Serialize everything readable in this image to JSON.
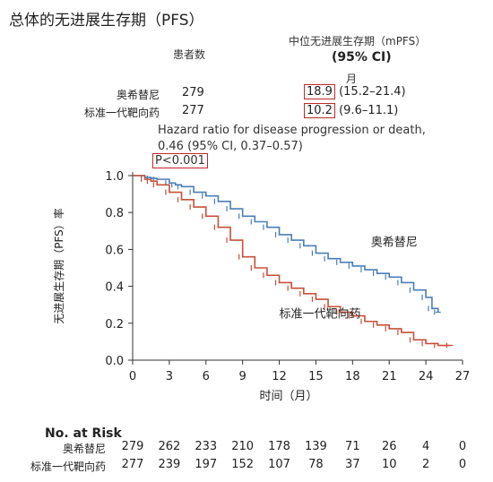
{
  "header": {
    "title": "总体的无进展生存期（PFS）",
    "col_patients": "患者数",
    "col_mpfs": "中位无进展生存期（mPFS）",
    "col_ci": "(95% CI)",
    "col_unit": "月"
  },
  "arms": [
    {
      "label": "奥希替尼",
      "n": "279",
      "median": "18.9",
      "ci": "(15.2–21.4)"
    },
    {
      "label": "标准一代靶向药",
      "n": "277",
      "median": "10.2",
      "ci": "(9.6–11.1)"
    }
  ],
  "hazard": {
    "line1": "Hazard ratio for disease progression or death,",
    "line2": "0.46 (95% CI, 0.37–0.57)",
    "pvalue": "P<0.001"
  },
  "colors": {
    "osimertinib": "#4a7ebb",
    "standard": "#c8503a",
    "highlight": "#c0272d"
  },
  "chart_data": {
    "type": "line",
    "xlabel": "时间（月）",
    "ylabel": "无进展生存期（PFS）率",
    "xlim": [
      0,
      27
    ],
    "ylim": [
      0,
      1.0
    ],
    "xticks": [
      "0",
      "3",
      "6",
      "9",
      "12",
      "15",
      "18",
      "21",
      "24",
      "27"
    ],
    "yticks": [
      "0.0",
      "0.2",
      "0.4",
      "0.6",
      "0.8",
      "1.0"
    ],
    "grid": false,
    "series": [
      {
        "name": "奥希替尼",
        "color": "#4a7ebb",
        "x": [
          0,
          1,
          1.5,
          2,
          3,
          3.5,
          4,
          5,
          6,
          7,
          8,
          9,
          10,
          11,
          12,
          13,
          14,
          15,
          16,
          17,
          18,
          19,
          20,
          21,
          22,
          23,
          24,
          24.5,
          25
        ],
        "y": [
          1.0,
          0.99,
          0.985,
          0.98,
          0.96,
          0.95,
          0.94,
          0.91,
          0.89,
          0.86,
          0.82,
          0.78,
          0.75,
          0.72,
          0.68,
          0.65,
          0.62,
          0.58,
          0.55,
          0.53,
          0.51,
          0.49,
          0.47,
          0.45,
          0.42,
          0.38,
          0.34,
          0.28,
          0.26
        ]
      },
      {
        "name": "标准一代靶向药",
        "color": "#c8503a",
        "x": [
          0,
          1,
          1.5,
          2,
          3,
          4,
          5,
          6,
          7,
          8,
          9,
          10,
          11,
          12,
          13,
          14,
          15,
          16,
          17,
          18,
          19,
          20,
          21,
          22,
          23,
          24,
          25,
          26
        ],
        "y": [
          1.0,
          0.98,
          0.97,
          0.95,
          0.91,
          0.87,
          0.83,
          0.78,
          0.72,
          0.65,
          0.56,
          0.5,
          0.46,
          0.42,
          0.39,
          0.36,
          0.33,
          0.29,
          0.26,
          0.24,
          0.21,
          0.19,
          0.17,
          0.15,
          0.11,
          0.09,
          0.08,
          0.08
        ]
      }
    ],
    "annotations": [
      {
        "text": "奥希替尼",
        "x": 19.5,
        "y": 0.62
      },
      {
        "text": "标准一代靶向药",
        "x": 12.0,
        "y": 0.23
      }
    ]
  },
  "risk_table": {
    "title": "No. at Risk",
    "rows": [
      {
        "label": "奥希替尼",
        "values": [
          "279",
          "262",
          "233",
          "210",
          "178",
          "139",
          "71",
          "26",
          "4",
          "0"
        ]
      },
      {
        "label": "标准一代靶向药",
        "values": [
          "277",
          "239",
          "197",
          "152",
          "107",
          "78",
          "37",
          "10",
          "2",
          "0"
        ]
      }
    ]
  }
}
